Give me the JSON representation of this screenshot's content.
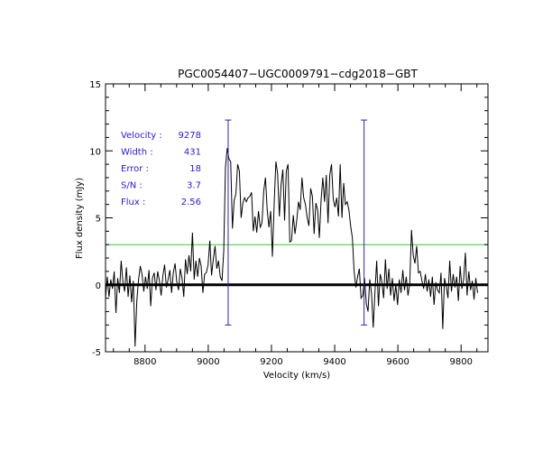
{
  "chart_data": {
    "type": "line",
    "title": "PGC0054407−UGC0009791−cdg2018−GBT",
    "xlabel": "Velocity (km/s)",
    "ylabel": "Flux density (mJy)",
    "xlim": [
      8675,
      9885
    ],
    "ylim": [
      -5,
      15
    ],
    "xticks": [
      8800,
      9000,
      9200,
      9400,
      9600,
      9800
    ],
    "yticks": [
      -5,
      0,
      5,
      10,
      15
    ],
    "colors": {
      "spectrum": "#000000",
      "markers": "#3a1fb0",
      "rms_line": "#33cc33",
      "annotations": "#2a1ad0"
    },
    "zero_line": 0,
    "rms_line": 3.0,
    "markers": {
      "velocities": [
        9063,
        9493
      ],
      "ymin": -3.0,
      "ymax": 12.3
    },
    "annotations": [
      {
        "label": "Velocity :",
        "value": "9278"
      },
      {
        "label": "Width :",
        "value": "431"
      },
      {
        "label": "Error :",
        "value": "18"
      },
      {
        "label": "S/N :",
        "value": "3.7"
      },
      {
        "label": "Flux :",
        "value": "2.56"
      }
    ],
    "series": [
      {
        "name": "spectrum",
        "x_start": 8675,
        "x_step": 5.5,
        "values": [
          -1.0,
          0.6,
          -0.9,
          0.4,
          -0.3,
          1.0,
          -2.1,
          0.5,
          -0.6,
          1.8,
          0.2,
          -0.5,
          1.3,
          -0.9,
          0.7,
          -1.3,
          0.3,
          -4.6,
          -1.2,
          0.4,
          1.4,
          0.8,
          -0.5,
          0.6,
          -0.3,
          1.1,
          -1.6,
          0.5,
          0.9,
          -0.4,
          1.0,
          0.3,
          -0.8,
          0.7,
          1.5,
          -0.2,
          0.4,
          1.1,
          -0.6,
          0.9,
          1.6,
          0.2,
          -0.4,
          1.2,
          0.5,
          -0.9,
          1.9,
          0.8,
          2.2,
          1.0,
          3.9,
          0.4,
          1.8,
          0.6,
          2.0,
          1.4,
          -0.6,
          0.8,
          0.9,
          1.5,
          3.3,
          0.7,
          1.9,
          2.9,
          1.2,
          1.8,
          0.6,
          0.3,
          2.5,
          8.8,
          10.2,
          9.4,
          9.2,
          4.2,
          6.3,
          6.8,
          9.0,
          8.5,
          5.0,
          6.1,
          6.5,
          6.2,
          6.5,
          6.6,
          6.9,
          4.0,
          5.1,
          3.9,
          5.5,
          4.3,
          4.6,
          7.0,
          8.0,
          5.6,
          4.3,
          5.5,
          2.1,
          6.0,
          9.2,
          8.3,
          5.1,
          7.5,
          8.6,
          4.8,
          8.5,
          9.0,
          3.2,
          3.3,
          5.2,
          3.8,
          4.8,
          6.2,
          5.6,
          8.0,
          6.5,
          6.0,
          5.0,
          4.4,
          7.2,
          6.6,
          3.8,
          6.1,
          5.6,
          3.5,
          6.3,
          8.0,
          6.2,
          8.2,
          4.6,
          8.2,
          9.0,
          6.4,
          5.8,
          6.5,
          5.1,
          9.0,
          5.0,
          7.6,
          6.0,
          6.2,
          5.6,
          4.4,
          3.5,
          1.0,
          -0.2,
          0.6,
          1.2,
          -1.0,
          -0.8,
          0.5,
          -1.4,
          -2.0,
          0.4,
          -0.6,
          -3.2,
          -0.5,
          1.8,
          -1.6,
          0.8,
          0.2,
          -1.0,
          1.9,
          -0.3,
          1.2,
          -0.8,
          0.5,
          -1.2,
          0.0,
          -1.5,
          0.4,
          -0.6,
          1.1,
          -0.4,
          0.6,
          -0.8,
          0.1,
          4.1,
          2.2,
          1.6,
          2.9,
          0.9,
          1.0,
          0.3,
          -0.3,
          0.8,
          -0.5,
          0.4,
          -0.9,
          0.6,
          -1.5,
          0.2,
          -0.4,
          -0.6,
          0.9,
          -3.3,
          0.5,
          -0.1,
          -1.0,
          1.8,
          -0.5,
          0.8,
          -0.2,
          0.6,
          -1.2,
          1.4,
          -0.3,
          0.4,
          2.4,
          -0.8,
          1.0,
          -0.4,
          0.3,
          -1.1,
          0.5,
          -0.6
        ]
      }
    ]
  }
}
